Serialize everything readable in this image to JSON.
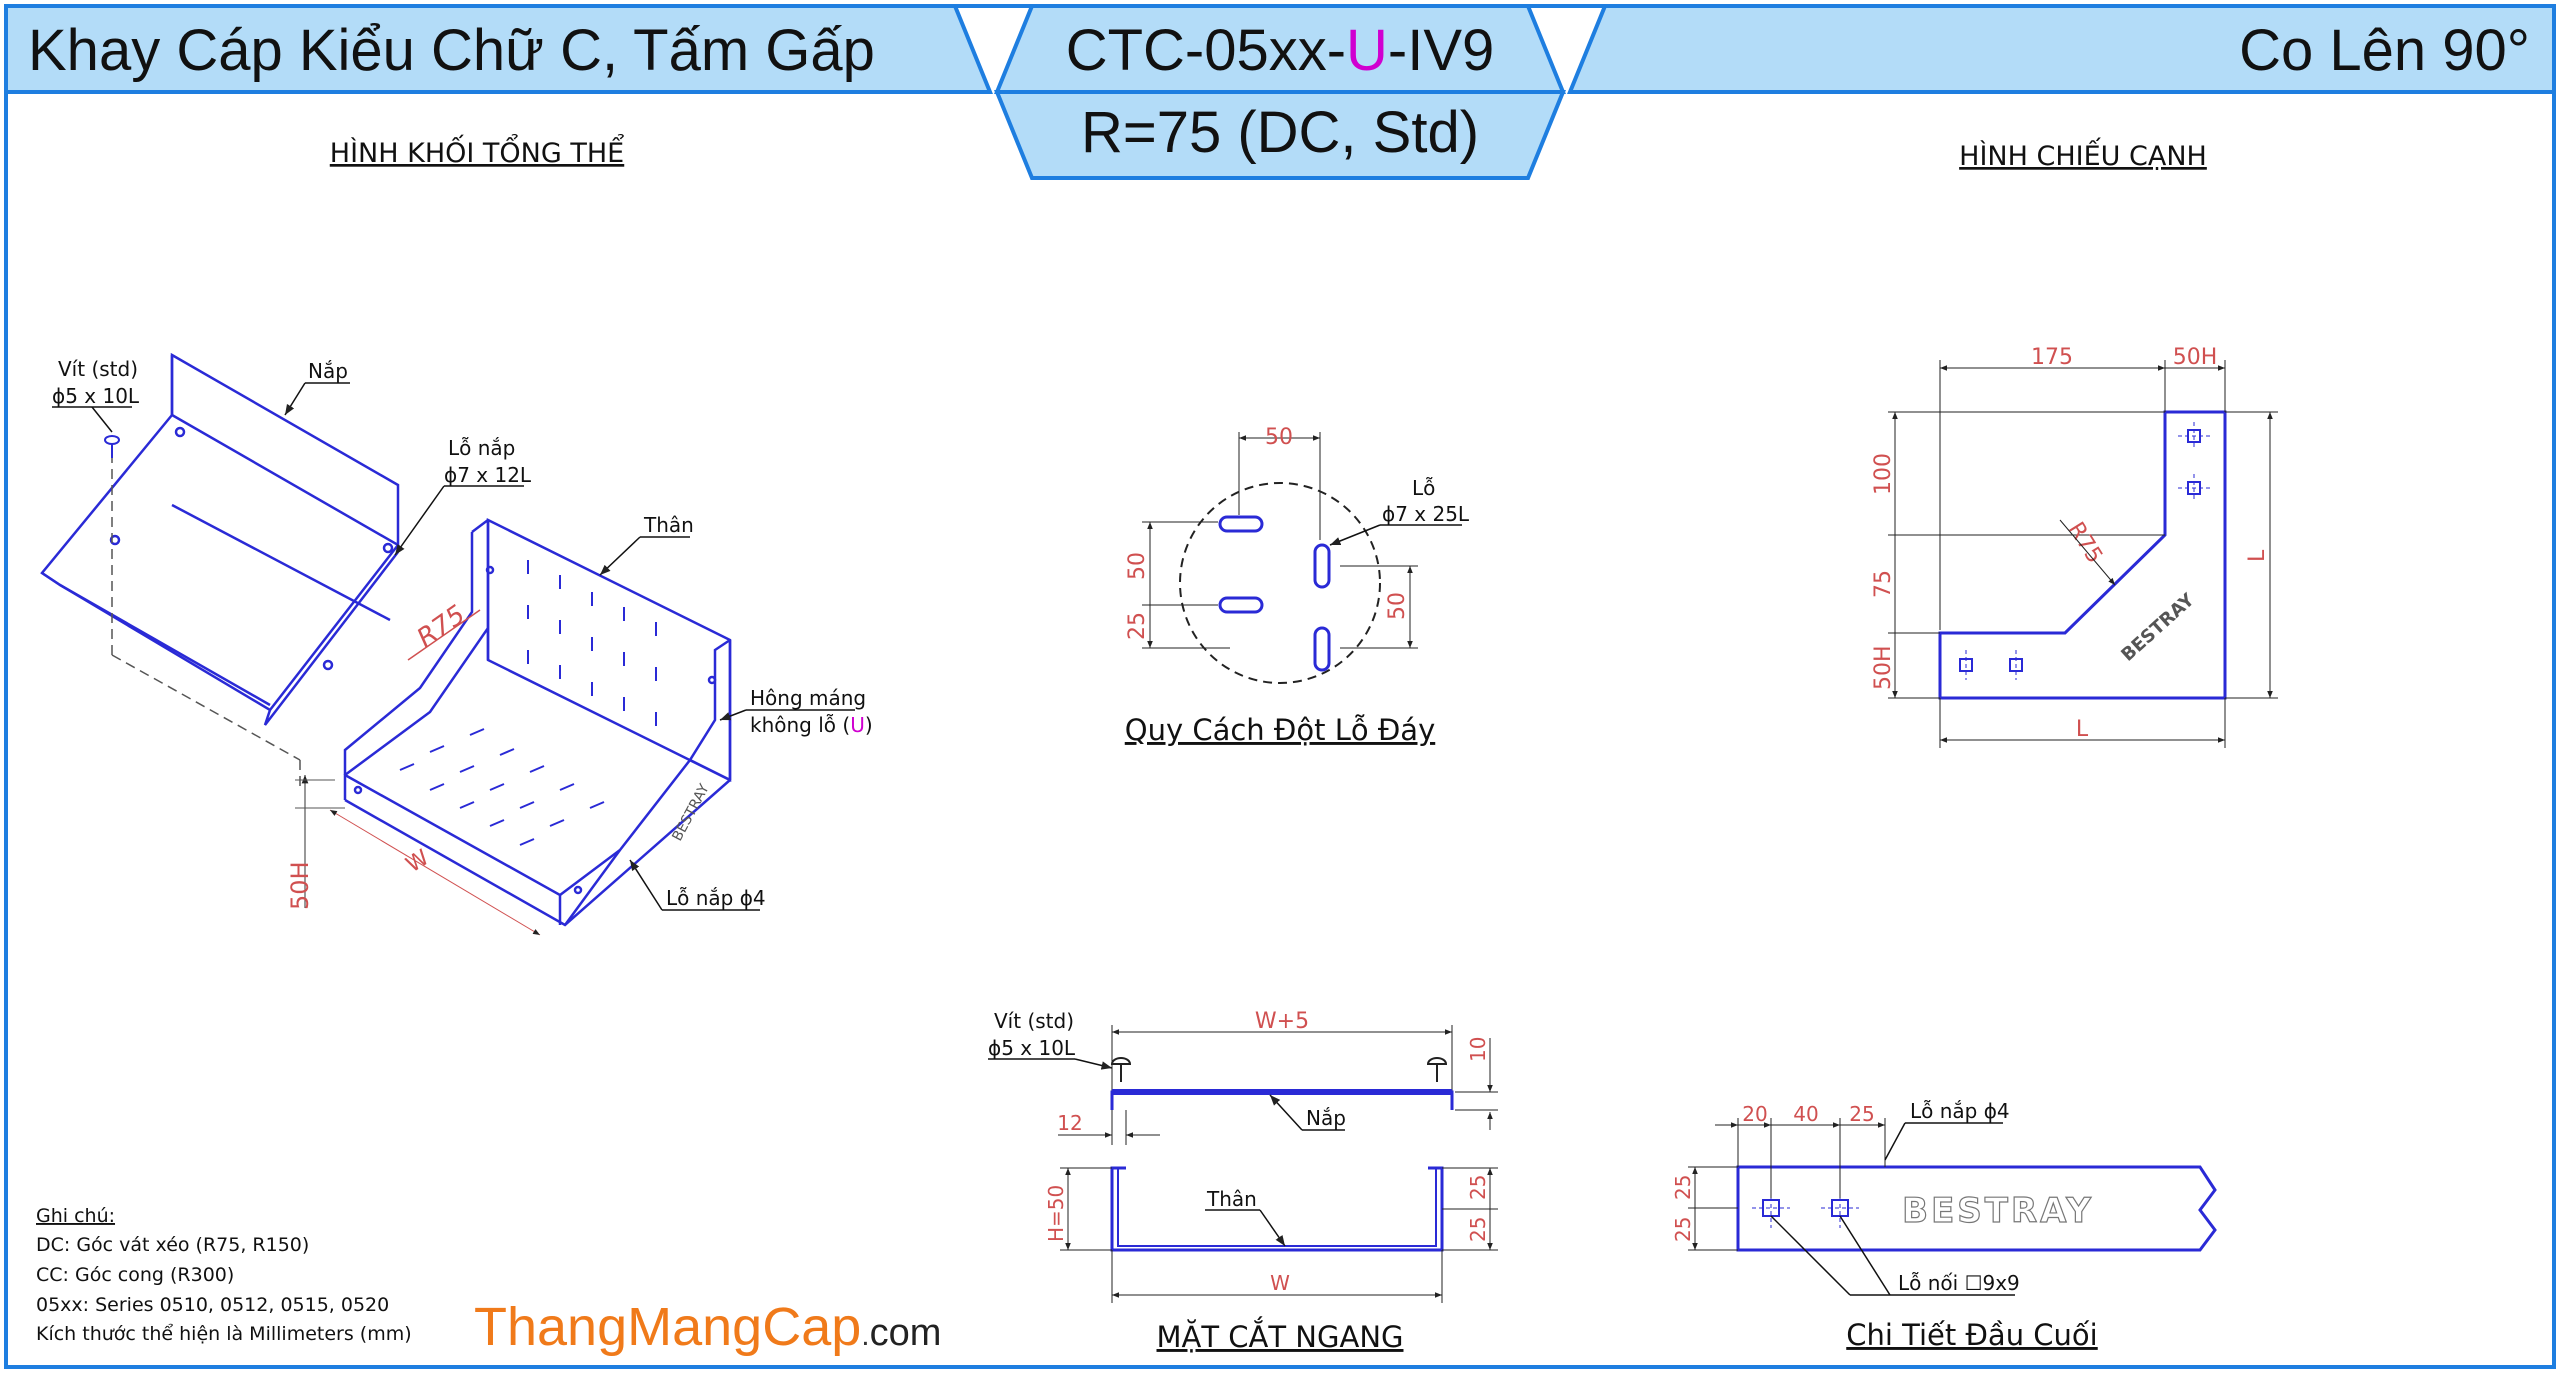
{
  "header": {
    "left_title": "Khay Cáp Kiểu Chữ C, Tấm Gấp",
    "code_prefix": "CTC-05xx-",
    "code_u": "U",
    "code_suffix": "-IV9",
    "radius_spec": "R=75 (DC, Std)",
    "right_title": "Co Lên 90°"
  },
  "colors": {
    "header_fill": "#b3dcf8",
    "frame_blue": "#1e7ee0",
    "drawing_blue": "#2a2ad6",
    "dim_red": "#d05050",
    "accent_magenta": "#d000d0",
    "brand_orange": "#f07a1a"
  },
  "iso_view": {
    "title": "HÌNH KHỐI TỔNG THỂ",
    "screw_label": "Vít (std)",
    "screw_size": "ϕ5 x 10L",
    "lid_label": "Nắp",
    "lid_hole_label": "Lỗ nắp",
    "lid_hole_size": "ϕ7 x 12L",
    "body_label": "Thân",
    "side_label": "Hông máng",
    "side_no_hole": "không lỗ (",
    "side_u": "U",
    "side_close": ")",
    "radius": "R75",
    "width": "W",
    "height": "50H",
    "brand": "BESTRAY",
    "cover_hole": "Lỗ nắp ϕ4"
  },
  "hole_spec": {
    "title": "Quy Cách Đột Lỗ Đáy",
    "dim_50_top": "50",
    "hole_label": "Lỗ",
    "hole_size": "ϕ7 x 25L",
    "dim_50_left": "50",
    "dim_25_left": "25",
    "dim_50_right": "50"
  },
  "side_view": {
    "title": "HÌNH CHIẾU CẠNH",
    "dim_175": "175",
    "dim_50h_top": "50H",
    "dim_100": "100",
    "dim_75": "75",
    "dim_50h_left": "50H",
    "radius": "R75",
    "dim_l_right": "L",
    "dim_l_bottom": "L",
    "brand": "BESTRAY"
  },
  "section_view": {
    "title": "MẶT CẮT NGANG",
    "screw_label": "Vít (std)",
    "screw_size": "ϕ5 x 10L",
    "dim_w5": "W+5",
    "dim_10": "10",
    "dim_12": "12",
    "lid_label": "Nắp",
    "body_label": "Thân",
    "dim_h50": "H=50",
    "dim_25a": "25",
    "dim_25b": "25",
    "dim_w": "W"
  },
  "end_detail": {
    "title": "Chi Tiết Đầu Cuối",
    "dim_20": "20",
    "dim_40": "40",
    "dim_25": "25",
    "lid_hole": "Lỗ nắp ϕ4",
    "dim_25a": "25",
    "dim_25b": "25",
    "joint_hole": "Lỗ nối ☐9x9",
    "brand": "BESTRAY"
  },
  "notes": {
    "heading": "Ghi chú:",
    "lines": [
      "DC: Góc vát xéo (R75, R150)",
      "CC: Góc cong (R300)",
      "05xx: Series 0510, 0512, 0515, 0520",
      "Kích thước thể hiện là Millimeters (mm)"
    ]
  },
  "brand_site": {
    "name": "ThangMangCap",
    "dot": ".",
    "tld": "com"
  }
}
